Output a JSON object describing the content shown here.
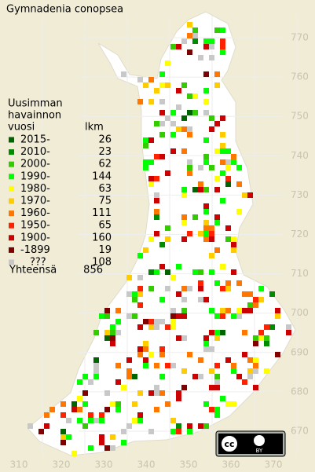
{
  "title": "Gymnadenia conopsea",
  "legend": {
    "header": [
      "Uusimman",
      "havainnon",
      "vuosi"
    ],
    "count_header": "lkm",
    "rows": [
      {
        "label": "2015-",
        "count": 26,
        "color": "#006400"
      },
      {
        "label": "2010-",
        "count": 23,
        "color": "#008c00"
      },
      {
        "label": "2000-",
        "count": 62,
        "color": "#33cc00"
      },
      {
        "label": "1990-",
        "count": 144,
        "color": "#00ff00"
      },
      {
        "label": "1980-",
        "count": 63,
        "color": "#ffff00"
      },
      {
        "label": "1970-",
        "count": 75,
        "color": "#ffcc00"
      },
      {
        "label": "1960-",
        "count": 111,
        "color": "#ff7700"
      },
      {
        "label": "1950-",
        "count": 65,
        "color": "#ff2200"
      },
      {
        "label": "1900-",
        "count": 160,
        "color": "#cc0000"
      },
      {
        "label": "-1899",
        "count": 19,
        "color": "#800000"
      },
      {
        "label": "???",
        "count": 108,
        "color": "#c8c8c8"
      }
    ],
    "total": {
      "label": "Yhteensä",
      "value": 856
    }
  },
  "axes": {
    "y_labels": [
      770,
      760,
      750,
      740,
      730,
      720,
      710,
      700,
      690,
      680,
      670
    ],
    "x_labels": [
      310,
      320,
      330,
      340,
      350,
      360,
      370
    ]
  },
  "license": {
    "icon": "cc",
    "by": "BY"
  }
}
